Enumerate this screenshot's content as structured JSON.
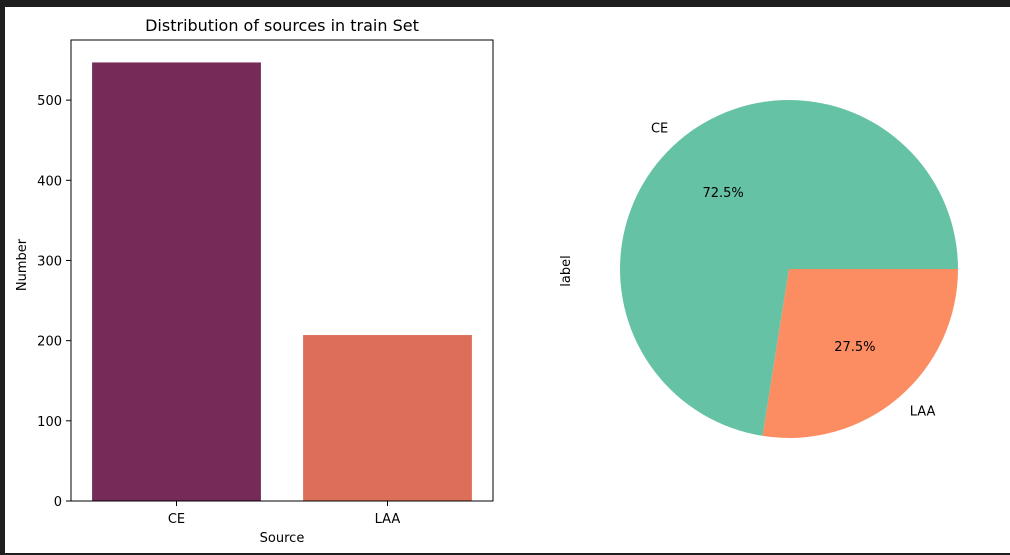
{
  "chart_data": [
    {
      "type": "bar",
      "title": "Distribution of sources in train Set",
      "xlabel": "Source",
      "ylabel": "Number",
      "categories": [
        "CE",
        "LAA"
      ],
      "values": [
        547,
        207
      ],
      "colors": [
        "#762a57",
        "#dd6f5a"
      ],
      "ylim": [
        0,
        575
      ],
      "yticks": [
        0,
        100,
        200,
        300,
        400,
        500
      ],
      "grid": false
    },
    {
      "type": "pie",
      "ylabel": "label",
      "labels": [
        "CE",
        "LAA"
      ],
      "values": [
        72.5,
        27.5
      ],
      "pct_labels": [
        "72.5%",
        "27.5%"
      ],
      "colors": [
        "#66c2a5",
        "#fc8d62"
      ]
    }
  ]
}
